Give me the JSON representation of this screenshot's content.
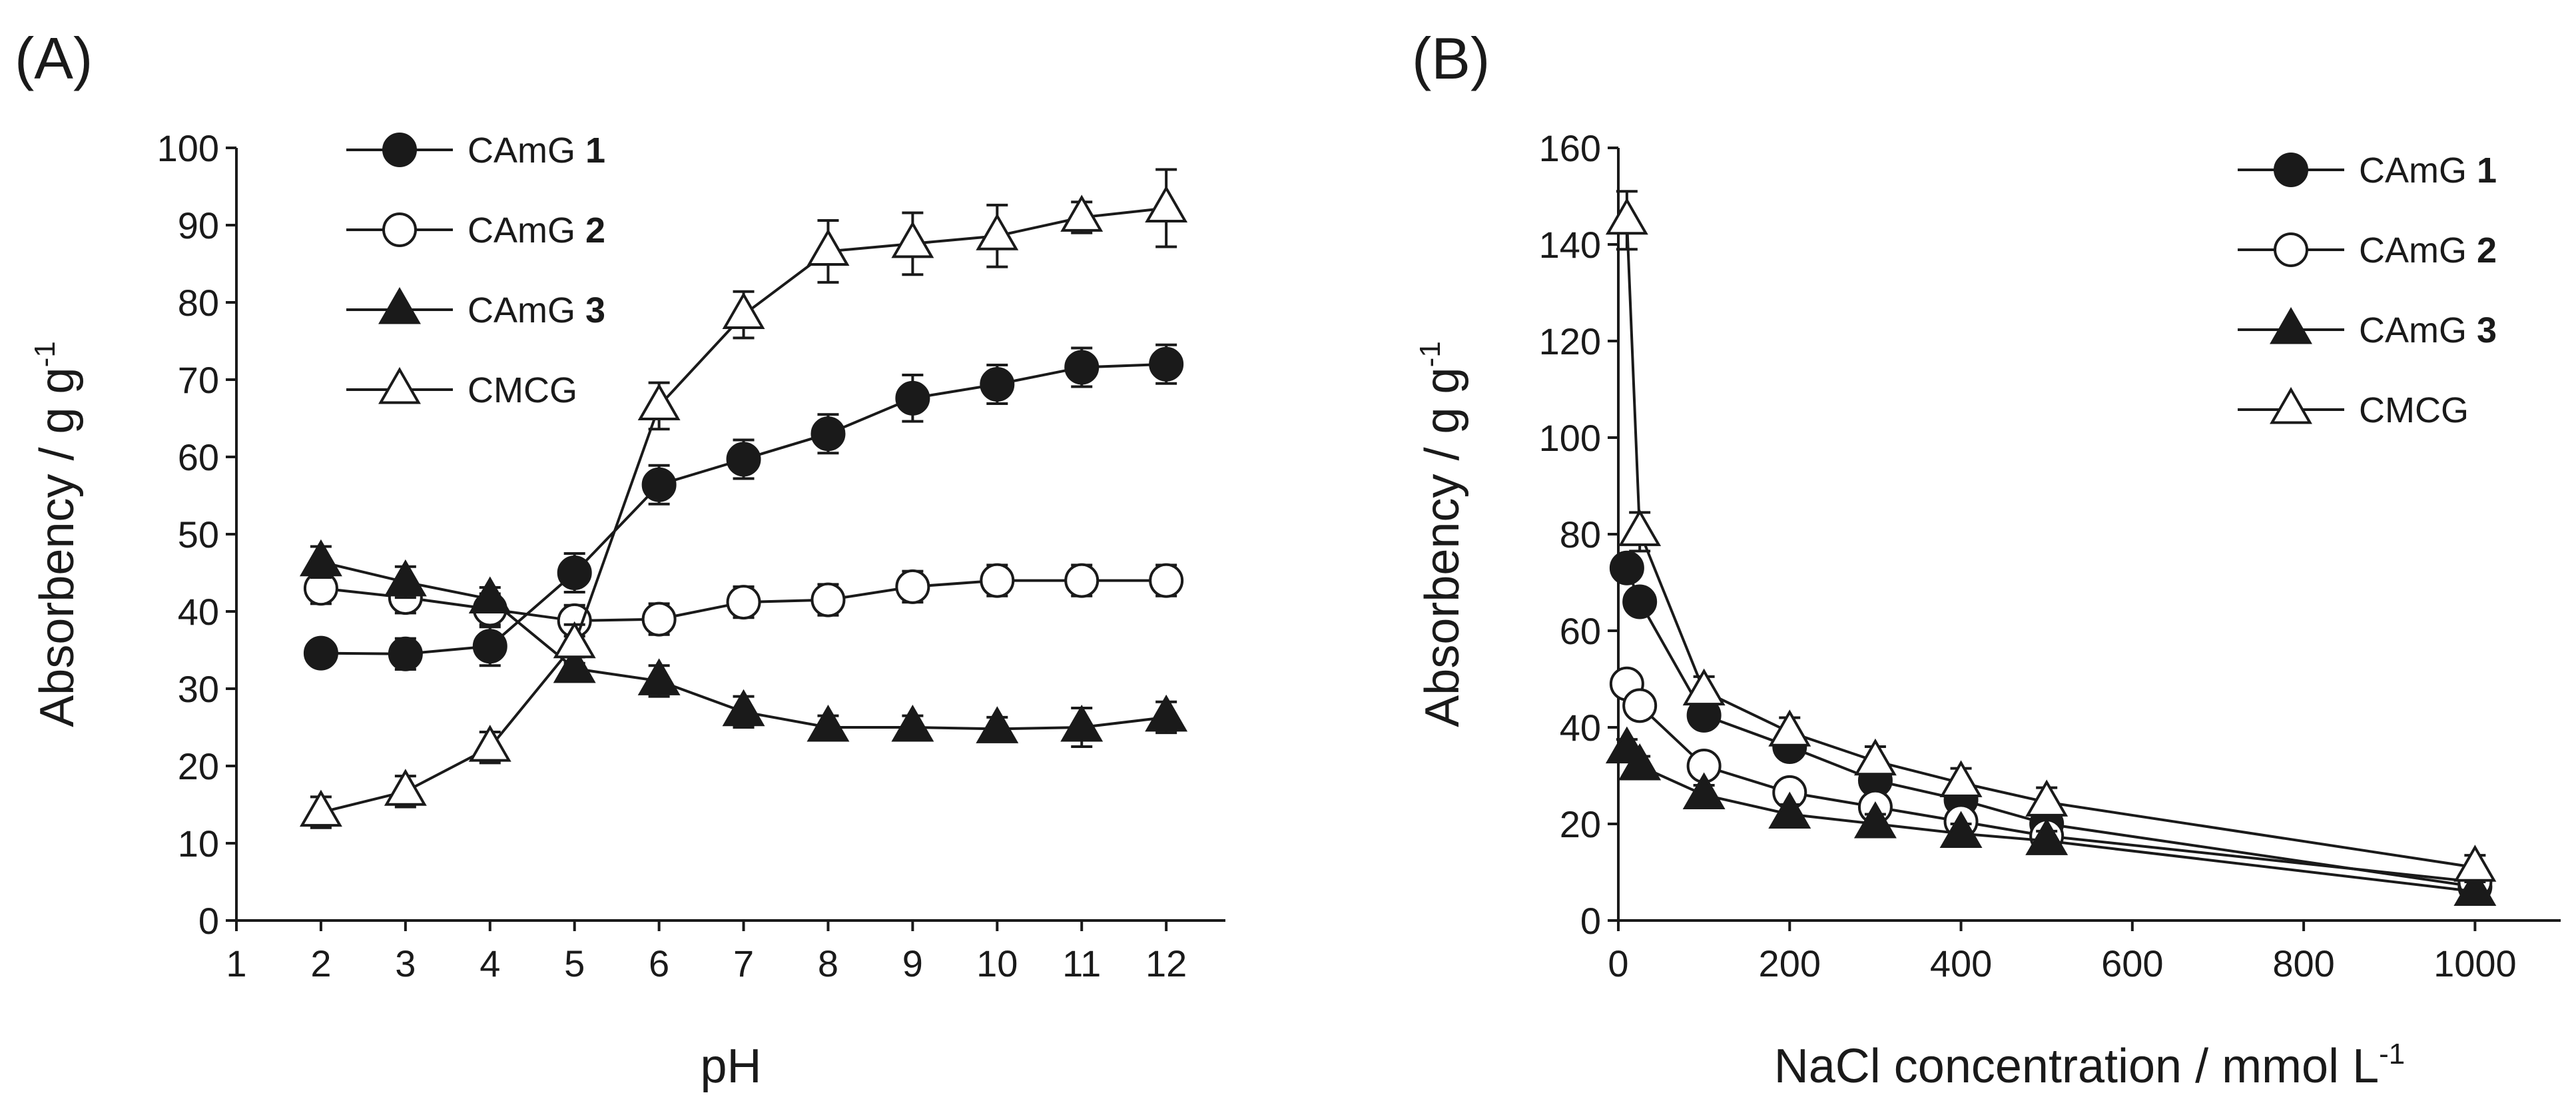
{
  "chart_data": [
    {
      "type": "line",
      "panel_label": "(A)",
      "xlabel": "pH",
      "ylabel": "Absorbency / g g",
      "ylabel_sup": "-1",
      "xlim": [
        1,
        12.7
      ],
      "ylim": [
        0,
        100
      ],
      "xticks": [
        1,
        2,
        3,
        4,
        5,
        6,
        7,
        8,
        9,
        10,
        11,
        12
      ],
      "yticks": [
        0,
        10,
        20,
        30,
        40,
        50,
        60,
        70,
        80,
        90,
        100
      ],
      "legend_position": "top-left",
      "series": [
        {
          "name": "CAmG",
          "bold_suffix": "1",
          "marker": "filled-circle",
          "x": [
            2,
            3,
            4,
            5,
            6,
            7,
            8,
            9,
            10,
            11,
            12
          ],
          "y": [
            34.6,
            34.5,
            35.5,
            45,
            56.4,
            59.7,
            63,
            67.6,
            69.4,
            71.6,
            72
          ],
          "err": [
            1.5,
            2,
            2.5,
            2.5,
            2.5,
            2.5,
            2.5,
            3,
            2.5,
            2.5,
            2.5
          ]
        },
        {
          "name": "CAmG",
          "bold_suffix": "2",
          "marker": "open-circle",
          "x": [
            2,
            3,
            4,
            5,
            6,
            7,
            8,
            9,
            10,
            11,
            12
          ],
          "y": [
            43,
            41.8,
            40.3,
            38.8,
            39,
            41.2,
            41.5,
            43.2,
            44,
            44,
            44
          ],
          "err": [
            2,
            2,
            2,
            2,
            2,
            2,
            2,
            2,
            2,
            2,
            2
          ]
        },
        {
          "name": "CAmG",
          "bold_suffix": "3",
          "marker": "filled-triangle",
          "x": [
            2,
            3,
            4,
            5,
            6,
            7,
            8,
            9,
            10,
            11,
            12
          ],
          "y": [
            46.4,
            43.8,
            41.6,
            32.6,
            31,
            27,
            25,
            25,
            24.8,
            25,
            26.3
          ],
          "err": [
            2,
            2,
            1.5,
            1.5,
            2,
            2,
            1.5,
            1.5,
            1.5,
            2.5,
            2
          ]
        },
        {
          "name": "CMCG",
          "bold_suffix": "",
          "marker": "open-triangle",
          "x": [
            2,
            3,
            4,
            5,
            6,
            7,
            8,
            9,
            10,
            11,
            12
          ],
          "y": [
            14,
            16.7,
            22.4,
            35.8,
            66.6,
            78.4,
            86.6,
            87.6,
            88.6,
            91,
            92.2
          ],
          "err": [
            2,
            2,
            2,
            2.5,
            3,
            3,
            4,
            4,
            4,
            2,
            5
          ]
        }
      ]
    },
    {
      "type": "line",
      "panel_label": "(B)",
      "xlabel": "NaCl concentration / mmol L",
      "xlabel_sup": "-1",
      "ylabel": "Absorbency / g g",
      "ylabel_sup": "-1",
      "xlim": [
        0,
        1100
      ],
      "ylim": [
        0,
        160
      ],
      "xticks": [
        0,
        200,
        400,
        600,
        800,
        1000
      ],
      "yticks": [
        0,
        20,
        40,
        60,
        80,
        100,
        120,
        140,
        160
      ],
      "legend_position": "top-right",
      "series": [
        {
          "name": "CAmG",
          "bold_suffix": "1",
          "marker": "filled-circle",
          "x": [
            10,
            25,
            100,
            200,
            300,
            400,
            500,
            1000
          ],
          "y": [
            73,
            66,
            42.5,
            36,
            29,
            25,
            20,
            7
          ],
          "err": [
            2.5,
            2.5,
            2.5,
            2.5,
            2.5,
            2.5,
            2.5,
            2
          ]
        },
        {
          "name": "CAmG",
          "bold_suffix": "2",
          "marker": "open-circle",
          "x": [
            10,
            25,
            100,
            200,
            300,
            400,
            500,
            1000
          ],
          "y": [
            49,
            44.5,
            32,
            26.5,
            23.5,
            20.5,
            17.5,
            8
          ],
          "err": [
            2,
            2,
            2,
            2,
            2,
            2,
            2,
            2
          ]
        },
        {
          "name": "CAmG",
          "bold_suffix": "3",
          "marker": "filled-triangle",
          "x": [
            10,
            25,
            100,
            200,
            300,
            400,
            500,
            1000
          ],
          "y": [
            35.5,
            32,
            26,
            22,
            20,
            18,
            16.5,
            6
          ],
          "err": [
            2,
            2,
            2,
            2,
            2,
            2,
            2,
            2
          ]
        },
        {
          "name": "CMCG",
          "bold_suffix": "",
          "marker": "open-triangle",
          "x": [
            10,
            25,
            100,
            200,
            300,
            400,
            500,
            1000
          ],
          "y": [
            145,
            80.5,
            47.5,
            39,
            33,
            28.5,
            24.5,
            11
          ],
          "err": [
            6,
            4,
            3,
            3,
            3,
            3,
            3,
            2.5
          ]
        }
      ]
    }
  ]
}
